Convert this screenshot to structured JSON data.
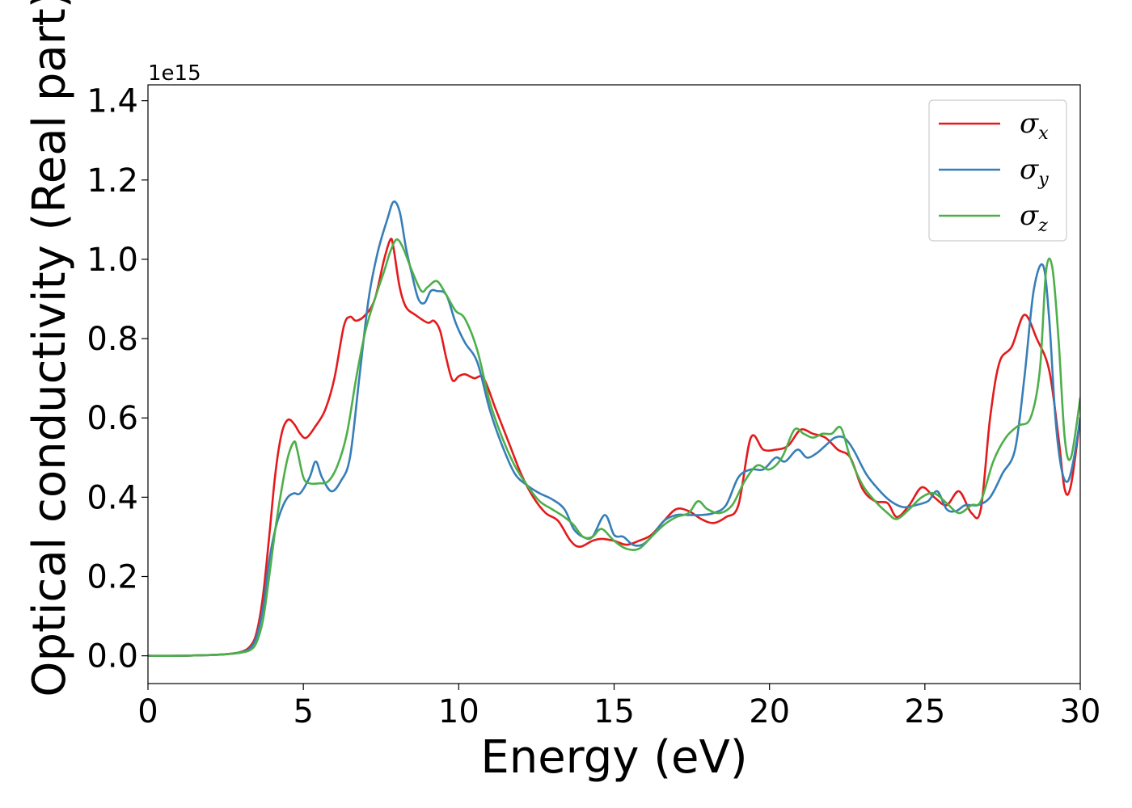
{
  "chart_data": {
    "type": "line",
    "title": "",
    "xlabel": "Energy (eV)",
    "ylabel": "Optical conductivity (Real part)",
    "y_offset_label": "1e15",
    "xlim": [
      0,
      30
    ],
    "ylim": [
      -0.07,
      1.44
    ],
    "x_ticks": [
      0,
      5,
      10,
      15,
      20,
      25,
      30
    ],
    "x_tick_labels": [
      "0",
      "5",
      "10",
      "15",
      "20",
      "25",
      "30"
    ],
    "y_ticks": [
      0.0,
      0.2,
      0.4,
      0.6,
      0.8,
      1.0,
      1.2,
      1.4
    ],
    "y_tick_labels": [
      "0.0",
      "0.2",
      "0.4",
      "0.6",
      "0.8",
      "1.0",
      "1.2",
      "1.4"
    ],
    "grid": false,
    "legend_position": "top-right",
    "series": [
      {
        "name_base": "σ",
        "name_sub": "x",
        "color": "#e41a1c",
        "x": [
          0,
          1,
          2,
          2.5,
          3,
          3.3,
          3.5,
          3.7,
          3.9,
          4.1,
          4.3,
          4.5,
          4.7,
          4.9,
          5.1,
          5.4,
          5.7,
          6.0,
          6.3,
          6.5,
          6.7,
          7.0,
          7.3,
          7.6,
          7.8,
          7.9,
          8.1,
          8.3,
          8.6,
          9.0,
          9.2,
          9.4,
          9.6,
          9.8,
          10.0,
          10.2,
          10.5,
          10.8,
          11.2,
          11.6,
          12.0,
          12.4,
          12.8,
          13.2,
          13.6,
          13.9,
          14.3,
          14.6,
          15.0,
          15.4,
          15.8,
          16.2,
          16.6,
          17.0,
          17.4,
          17.8,
          18.2,
          18.6,
          19.0,
          19.4,
          19.8,
          20.2,
          20.6,
          21.0,
          21.4,
          21.8,
          22.2,
          22.6,
          23.0,
          23.4,
          23.8,
          24.1,
          24.5,
          24.9,
          25.3,
          25.7,
          26.1,
          26.5,
          26.8,
          27.1,
          27.4,
          27.8,
          28.2,
          28.6,
          29.0,
          29.3,
          29.5,
          29.7,
          30.0
        ],
        "y": [
          0,
          0,
          0.002,
          0.004,
          0.01,
          0.025,
          0.06,
          0.15,
          0.3,
          0.46,
          0.56,
          0.595,
          0.585,
          0.56,
          0.55,
          0.58,
          0.62,
          0.7,
          0.83,
          0.855,
          0.845,
          0.86,
          0.9,
          1.0,
          1.05,
          1.03,
          0.93,
          0.88,
          0.86,
          0.84,
          0.845,
          0.82,
          0.75,
          0.695,
          0.705,
          0.71,
          0.7,
          0.7,
          0.62,
          0.54,
          0.46,
          0.4,
          0.36,
          0.34,
          0.29,
          0.275,
          0.29,
          0.295,
          0.29,
          0.28,
          0.29,
          0.305,
          0.34,
          0.37,
          0.365,
          0.345,
          0.335,
          0.35,
          0.38,
          0.55,
          0.52,
          0.52,
          0.53,
          0.57,
          0.56,
          0.55,
          0.52,
          0.5,
          0.42,
          0.39,
          0.385,
          0.35,
          0.38,
          0.425,
          0.4,
          0.38,
          0.415,
          0.36,
          0.37,
          0.6,
          0.74,
          0.78,
          0.86,
          0.8,
          0.72,
          0.55,
          0.42,
          0.43,
          0.6
        ]
      },
      {
        "name_base": "σ",
        "name_sub": "y",
        "color": "#377eb8",
        "x": [
          0,
          1,
          2,
          2.5,
          3,
          3.3,
          3.5,
          3.7,
          3.9,
          4.1,
          4.3,
          4.5,
          4.7,
          4.9,
          5.2,
          5.4,
          5.6,
          5.9,
          6.2,
          6.5,
          6.8,
          7.1,
          7.4,
          7.7,
          7.9,
          8.1,
          8.3,
          8.5,
          8.7,
          8.9,
          9.1,
          9.3,
          9.6,
          9.9,
          10.2,
          10.6,
          11.0,
          11.4,
          11.8,
          12.2,
          12.6,
          13.0,
          13.4,
          13.7,
          14.0,
          14.3,
          14.7,
          15.0,
          15.3,
          15.6,
          15.9,
          16.2,
          16.6,
          17.0,
          17.4,
          17.8,
          18.2,
          18.6,
          19.0,
          19.4,
          19.8,
          20.2,
          20.5,
          20.9,
          21.2,
          21.5,
          21.8,
          22.1,
          22.4,
          22.7,
          23.1,
          23.5,
          23.9,
          24.3,
          24.7,
          25.1,
          25.4,
          25.7,
          26.0,
          26.3,
          26.7,
          27.1,
          27.5,
          27.9,
          28.2,
          28.5,
          28.8,
          29.0,
          29.2,
          29.4,
          29.6,
          29.8,
          30.0
        ],
        "y": [
          0,
          0,
          0.002,
          0.004,
          0.009,
          0.02,
          0.05,
          0.12,
          0.24,
          0.32,
          0.37,
          0.4,
          0.41,
          0.41,
          0.45,
          0.49,
          0.45,
          0.415,
          0.44,
          0.5,
          0.7,
          0.9,
          1.02,
          1.1,
          1.145,
          1.12,
          1.03,
          0.96,
          0.9,
          0.89,
          0.92,
          0.92,
          0.91,
          0.84,
          0.79,
          0.74,
          0.62,
          0.53,
          0.46,
          0.43,
          0.41,
          0.395,
          0.37,
          0.32,
          0.3,
          0.3,
          0.355,
          0.305,
          0.3,
          0.28,
          0.28,
          0.3,
          0.34,
          0.355,
          0.355,
          0.355,
          0.36,
          0.38,
          0.45,
          0.47,
          0.47,
          0.5,
          0.49,
          0.52,
          0.5,
          0.51,
          0.53,
          0.55,
          0.55,
          0.52,
          0.46,
          0.42,
          0.39,
          0.375,
          0.38,
          0.39,
          0.415,
          0.37,
          0.365,
          0.38,
          0.38,
          0.4,
          0.46,
          0.52,
          0.7,
          0.92,
          0.985,
          0.85,
          0.6,
          0.47,
          0.44,
          0.5,
          0.6
        ]
      },
      {
        "name_base": "σ",
        "name_sub": "z",
        "color": "#4daf4a",
        "x": [
          0,
          1,
          2,
          2.5,
          3,
          3.3,
          3.5,
          3.7,
          3.9,
          4.1,
          4.3,
          4.5,
          4.7,
          4.8,
          5.0,
          5.2,
          5.5,
          5.8,
          6.1,
          6.4,
          6.7,
          7.0,
          7.3,
          7.6,
          7.8,
          8.0,
          8.2,
          8.5,
          8.8,
          9.0,
          9.3,
          9.6,
          9.9,
          10.2,
          10.6,
          11.0,
          11.4,
          11.8,
          12.2,
          12.6,
          13.0,
          13.4,
          13.7,
          14.0,
          14.3,
          14.6,
          15.0,
          15.4,
          15.8,
          16.2,
          16.6,
          17.0,
          17.4,
          17.7,
          18.0,
          18.4,
          18.8,
          19.2,
          19.6,
          20.0,
          20.4,
          20.8,
          21.1,
          21.4,
          21.7,
          22.0,
          22.3,
          22.6,
          23.0,
          23.4,
          23.8,
          24.1,
          24.5,
          24.9,
          25.3,
          25.7,
          26.1,
          26.5,
          26.8,
          27.2,
          27.6,
          28.0,
          28.4,
          28.7,
          28.9,
          29.1,
          29.3,
          29.5,
          29.7,
          30.0
        ],
        "y": [
          0,
          0,
          0.002,
          0.004,
          0.008,
          0.015,
          0.035,
          0.09,
          0.2,
          0.32,
          0.42,
          0.5,
          0.54,
          0.52,
          0.45,
          0.435,
          0.435,
          0.44,
          0.48,
          0.56,
          0.7,
          0.82,
          0.9,
          0.97,
          1.02,
          1.05,
          1.03,
          0.97,
          0.92,
          0.93,
          0.945,
          0.91,
          0.87,
          0.85,
          0.77,
          0.64,
          0.55,
          0.48,
          0.43,
          0.39,
          0.37,
          0.35,
          0.33,
          0.3,
          0.3,
          0.32,
          0.29,
          0.27,
          0.27,
          0.3,
          0.33,
          0.35,
          0.36,
          0.39,
          0.37,
          0.36,
          0.38,
          0.44,
          0.48,
          0.47,
          0.5,
          0.57,
          0.56,
          0.55,
          0.56,
          0.56,
          0.575,
          0.5,
          0.43,
          0.39,
          0.36,
          0.345,
          0.37,
          0.4,
          0.41,
          0.385,
          0.36,
          0.38,
          0.39,
          0.49,
          0.55,
          0.58,
          0.6,
          0.72,
          0.97,
          0.98,
          0.8,
          0.55,
          0.5,
          0.65
        ]
      }
    ]
  }
}
